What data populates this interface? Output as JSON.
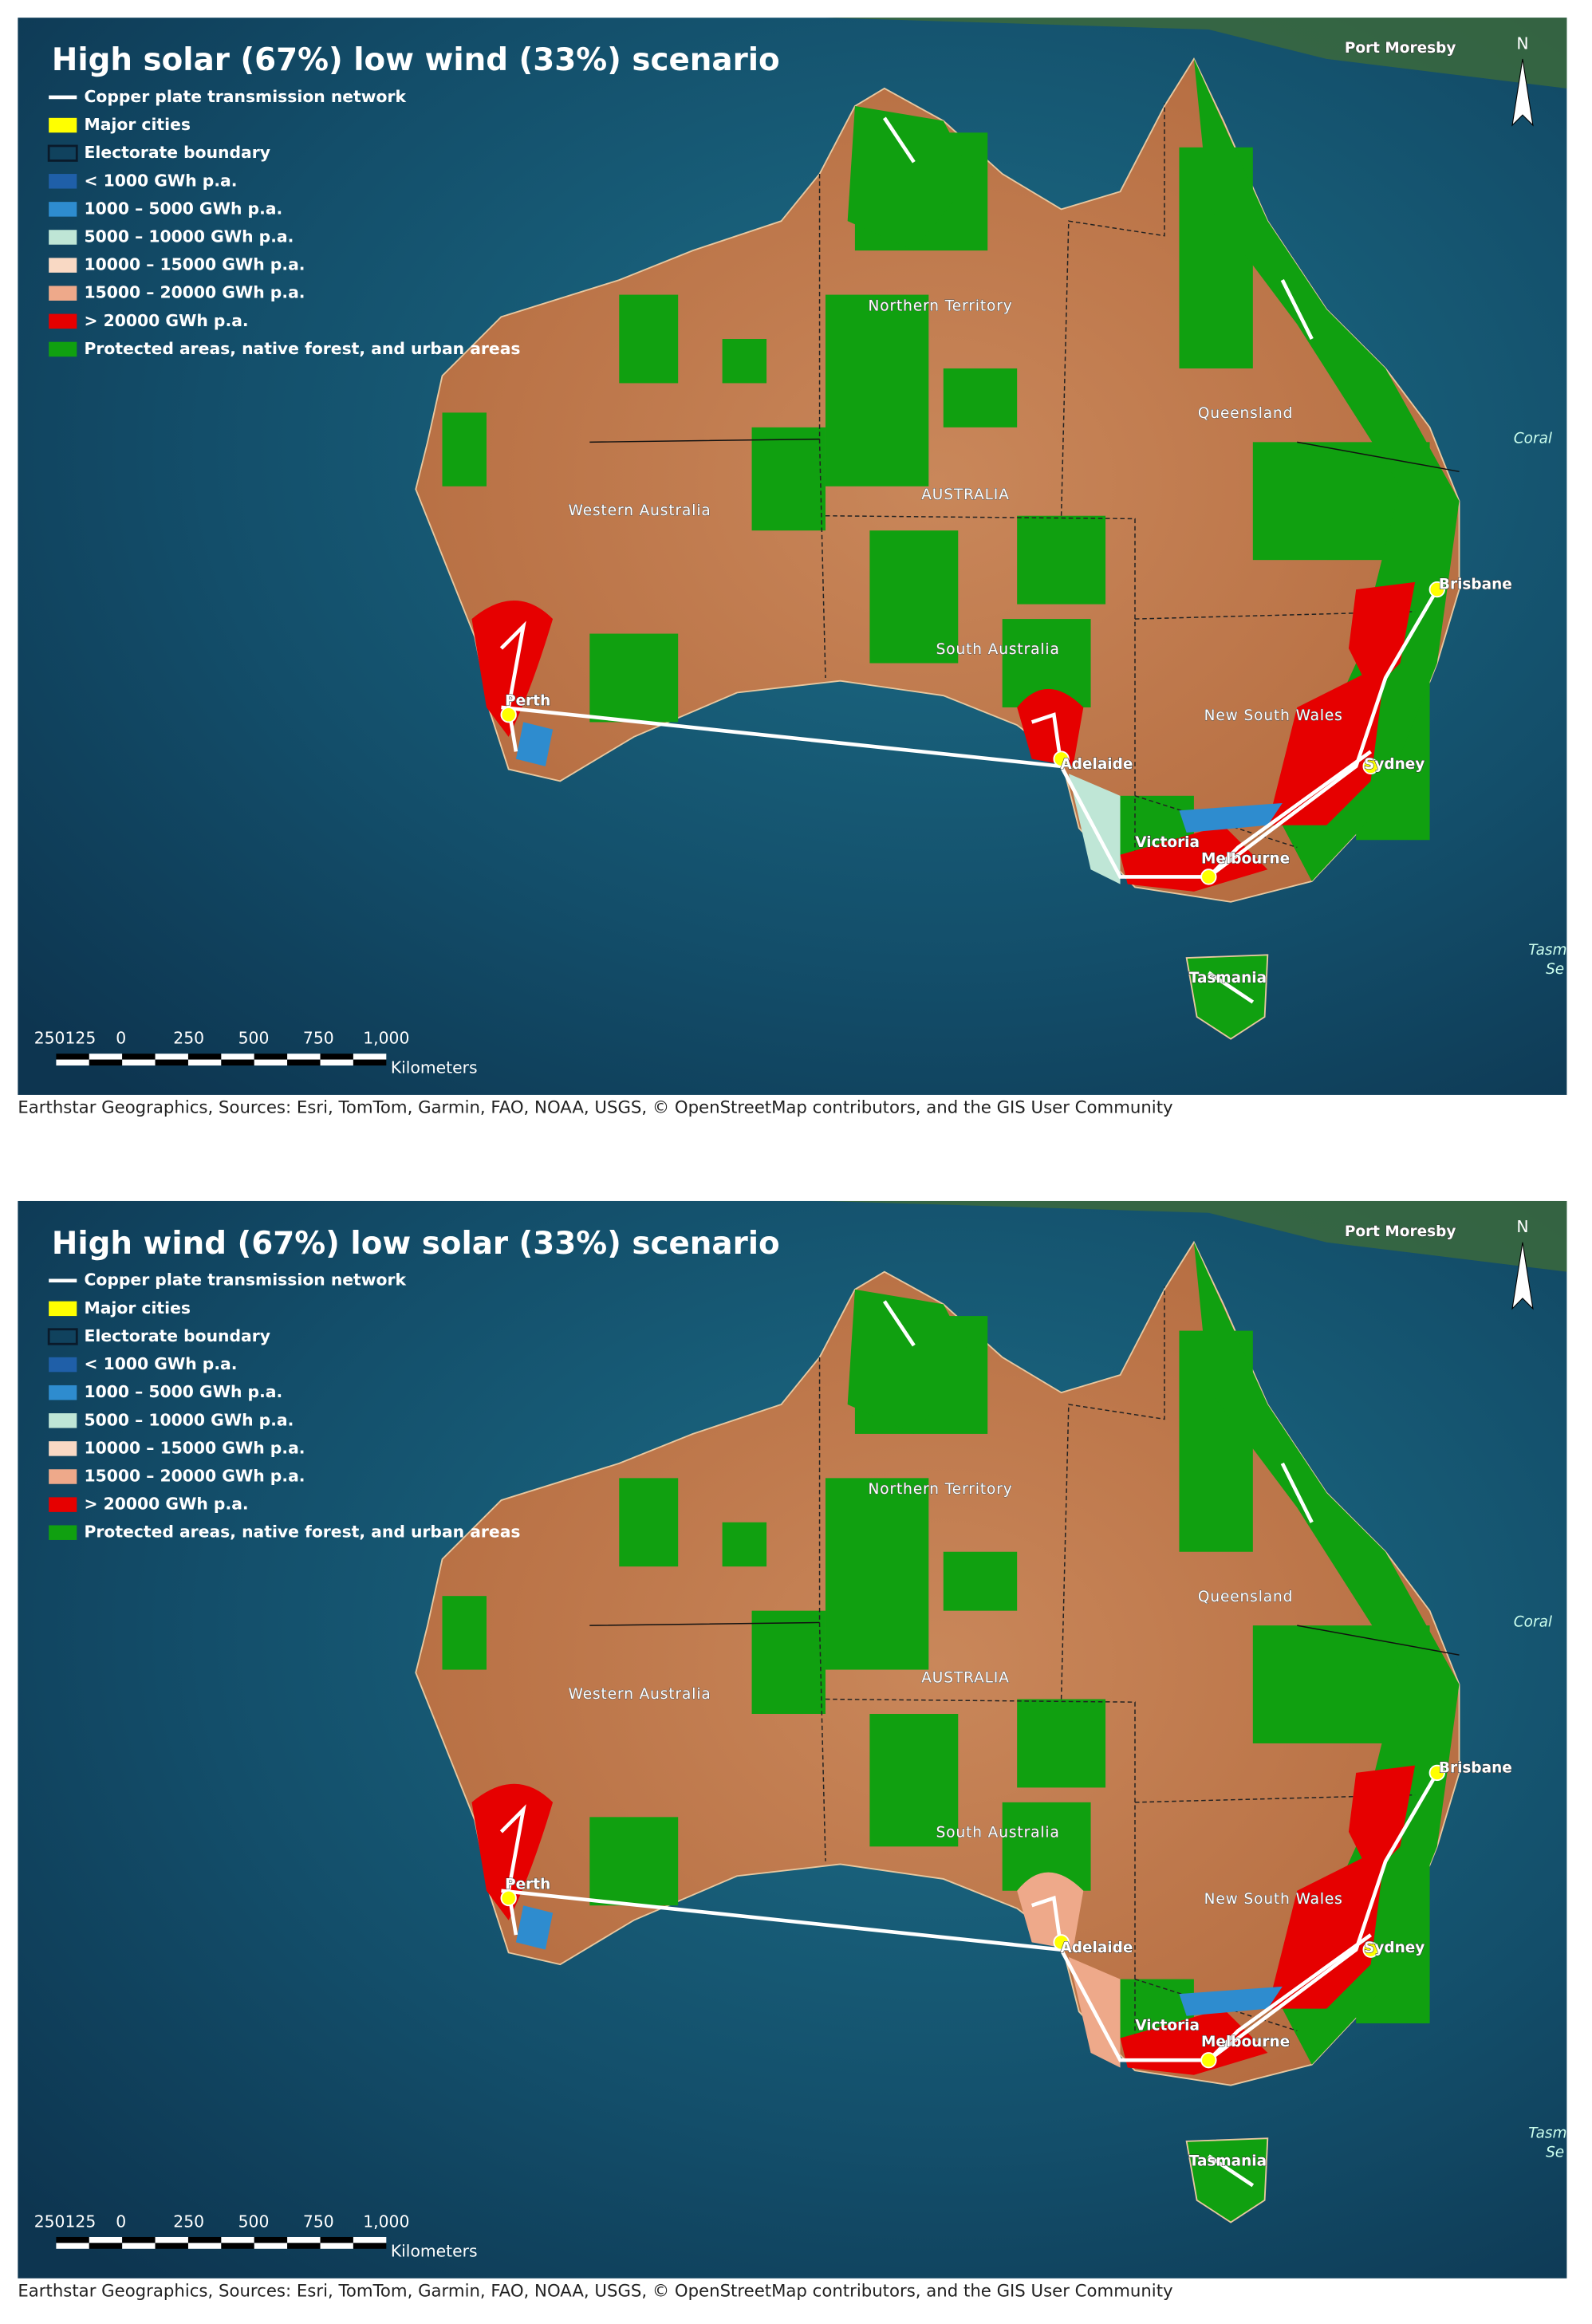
{
  "panels": [
    {
      "title": "High solar (67%) low wind (33%) scenario",
      "legend": [
        {
          "label": "Copper plate transmission network",
          "color": "#ffffff"
        },
        {
          "label": "Major cities",
          "color": "#ffff00"
        },
        {
          "label": "Electorate boundary",
          "color": "#0a1a2a"
        },
        {
          "label": "< 1000 GWh p.a.",
          "color": "#1f5fa8"
        },
        {
          "label": "1000 – 5000 GWh p.a.",
          "color": "#2e8ccf"
        },
        {
          "label": "5000 – 10000 GWh p.a.",
          "color": "#bfe6d6"
        },
        {
          "label": "10000 – 15000 GWh p.a.",
          "color": "#f9d9c4"
        },
        {
          "label": "15000 – 20000 GWh p.a.",
          "color": "#eea98a"
        },
        {
          "label": "> 20000 GWh p.a.",
          "color": "#e60000"
        },
        {
          "label": "Protected areas, native forest, and urban areas",
          "color": "#10a010"
        }
      ],
      "places": [
        "Port Moresby",
        "Northern Territory",
        "Queensland",
        "AUSTRALIA",
        "Western Australia",
        "South Australia",
        "Brisbane",
        "Perth",
        "New South Wales",
        "Sydney",
        "Adelaide",
        "Victoria",
        "Melbourne",
        "Tasmania",
        "Coral",
        "Tasm",
        "Se"
      ],
      "north": "N",
      "scale_labels": [
        "250125",
        "0",
        "250",
        "500",
        "750",
        "1,000"
      ],
      "scale_unit": "Kilometers",
      "attribution": "Earthstar Geographics, Sources: Esri, TomTom, Garmin, FAO, NOAA, USGS, © OpenStreetMap contributors, and the GIS User Community"
    },
    {
      "title": "High wind (67%) low solar (33%) scenario",
      "legend": [
        {
          "label": "Copper plate transmission network",
          "color": "#ffffff"
        },
        {
          "label": "Major cities",
          "color": "#ffff00"
        },
        {
          "label": "Electorate boundary",
          "color": "#0a1a2a"
        },
        {
          "label": "< 1000 GWh p.a.",
          "color": "#1f5fa8"
        },
        {
          "label": "1000 – 5000 GWh p.a.",
          "color": "#2e8ccf"
        },
        {
          "label": "5000 – 10000 GWh p.a.",
          "color": "#bfe6d6"
        },
        {
          "label": "10000 – 15000 GWh p.a.",
          "color": "#f9d9c4"
        },
        {
          "label": "15000 – 20000 GWh p.a.",
          "color": "#eea98a"
        },
        {
          "label": "> 20000 GWh p.a.",
          "color": "#e60000"
        },
        {
          "label": "Protected areas, native forest, and urban areas",
          "color": "#10a010"
        }
      ],
      "places": [
        "Port Moresby",
        "Northern Territory",
        "Queensland",
        "AUSTRALIA",
        "Western Australia",
        "South Australia",
        "Brisbane",
        "Perth",
        "New South Wales",
        "Sydney",
        "Adelaide",
        "Victoria",
        "Melbourne",
        "Tasmania",
        "Coral",
        "Tasm",
        "Se"
      ],
      "north": "N",
      "scale_labels": [
        "250125",
        "0",
        "250",
        "500",
        "750",
        "1,000"
      ],
      "scale_unit": "Kilometers",
      "attribution": "Earthstar Geographics, Sources: Esri, TomTom, Garmin, FAO, NOAA, USGS, © OpenStreetMap contributors, and the GIS User Community"
    }
  ]
}
